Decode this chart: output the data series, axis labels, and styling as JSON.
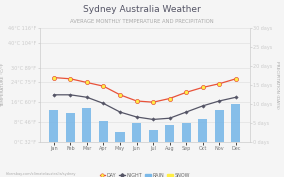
{
  "title": "Sydney Australia Weather",
  "subtitle": "AVERAGE MONTHLY TEMPERATURE AND PRECIPITATION",
  "months": [
    "Jan",
    "Feb",
    "Mar",
    "Apr",
    "May",
    "Jun",
    "Jul",
    "Aug",
    "Sep",
    "Oct",
    "Nov",
    "Dec"
  ],
  "day_temp": [
    26,
    25.5,
    24,
    22.5,
    19,
    16.5,
    16,
    17.5,
    20,
    22,
    23.5,
    25.5
  ],
  "night_temp": [
    19,
    19,
    18,
    15.5,
    12,
    10,
    9,
    9.5,
    12,
    14.5,
    16.5,
    18
  ],
  "rain_days": [
    8.5,
    7.5,
    9,
    5.5,
    2.5,
    5,
    3,
    4.5,
    5,
    6,
    8.5,
    10
  ],
  "day_color": "#e8523a",
  "night_color": "#555566",
  "bar_color": "#7ab8e8",
  "snow_marker_color": "#ffee58",
  "bg_color": "#f5f5f5",
  "grid_color": "#dddddd",
  "title_color": "#555566",
  "subtitle_color": "#aaaaaa",
  "left_tick_colors": [
    "#888888",
    "#77bb77",
    "#77bb77",
    "#888888",
    "#ee7755",
    "#ee7755",
    "#ee7755"
  ],
  "ylim_temp": [
    0,
    46
  ],
  "ylim_days": [
    0,
    30
  ],
  "left_ticks_pos": [
    0,
    8,
    16,
    24,
    30,
    40,
    46
  ],
  "left_tick_labels": [
    "0°C 32°F",
    "8°C 46°F",
    "16°C 60°F",
    "24°C 75°F",
    "30°C 89°F",
    "40°C 104°F",
    "46°C 116°F"
  ],
  "right_ticks": [
    0,
    5,
    10,
    15,
    20,
    25,
    30
  ],
  "right_tick_labels": [
    "0 days",
    "5 days",
    "10 days",
    "15 days",
    "20 days",
    "25 days",
    "30 days"
  ],
  "watermark": "hikersbay.com/climate/australia/sydney",
  "title_fontsize": 6.5,
  "subtitle_fontsize": 3.8,
  "tick_fontsize": 3.5,
  "legend_fontsize": 3.5,
  "ylabel_left": "TEMPERATURE °C/°F",
  "ylabel_right": "PRECIPITATION (DAYS)"
}
